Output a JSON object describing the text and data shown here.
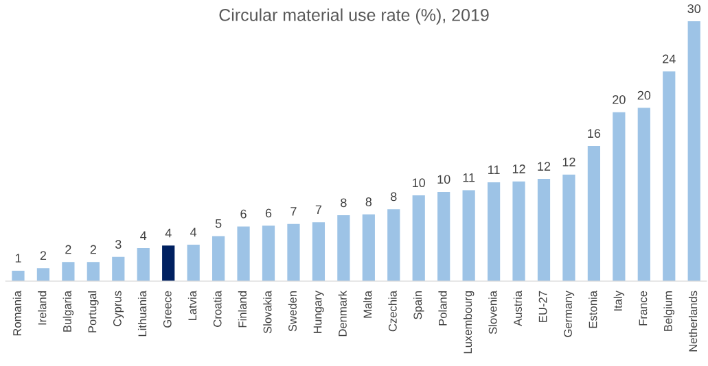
{
  "chart_data": {
    "type": "bar",
    "title": "Circular material use rate (%), 2019",
    "categories": [
      "Romania",
      "Ireland",
      "Bulgaria",
      "Portugal",
      "Cyprus",
      "Lithuania",
      "Greece",
      "Latvia",
      "Croatia",
      "Finland",
      "Slovakia",
      "Sweden",
      "Hungary",
      "Denmark",
      "Malta",
      "Czechia",
      "Spain",
      "Poland",
      "Luxembourg",
      "Slovenia",
      "Austria",
      "EU-27",
      "Germany",
      "Estonia",
      "Italy",
      "France",
      "Belgium",
      "Netherlands"
    ],
    "values": [
      1.2,
      1.5,
      2.2,
      2.2,
      2.8,
      3.8,
      4.1,
      4.2,
      5.2,
      6.3,
      6.4,
      6.6,
      6.8,
      7.6,
      7.7,
      8.3,
      9.9,
      10.3,
      10.5,
      11.4,
      11.5,
      11.8,
      12.3,
      15.6,
      19.5,
      20.0,
      24.2,
      30.0
    ],
    "value_labels": [
      "1",
      "2",
      "2",
      "2",
      "3",
      "4",
      "4",
      "4",
      "5",
      "6",
      "6",
      "7",
      "7",
      "8",
      "8",
      "8",
      "10",
      "10",
      "11",
      "11",
      "12",
      "12",
      "12",
      "16",
      "20",
      "20",
      "24",
      "30"
    ],
    "colors": [
      "#9dc3e6",
      "#9dc3e6",
      "#9dc3e6",
      "#9dc3e6",
      "#9dc3e6",
      "#9dc3e6",
      "#002060",
      "#9dc3e6",
      "#9dc3e6",
      "#9dc3e6",
      "#9dc3e6",
      "#9dc3e6",
      "#9dc3e6",
      "#9dc3e6",
      "#9dc3e6",
      "#9dc3e6",
      "#9dc3e6",
      "#9dc3e6",
      "#9dc3e6",
      "#9dc3e6",
      "#9dc3e6",
      "#9dc3e6",
      "#9dc3e6",
      "#9dc3e6",
      "#9dc3e6",
      "#9dc3e6",
      "#9dc3e6",
      "#9dc3e6"
    ],
    "grid": false,
    "legend": false
  }
}
